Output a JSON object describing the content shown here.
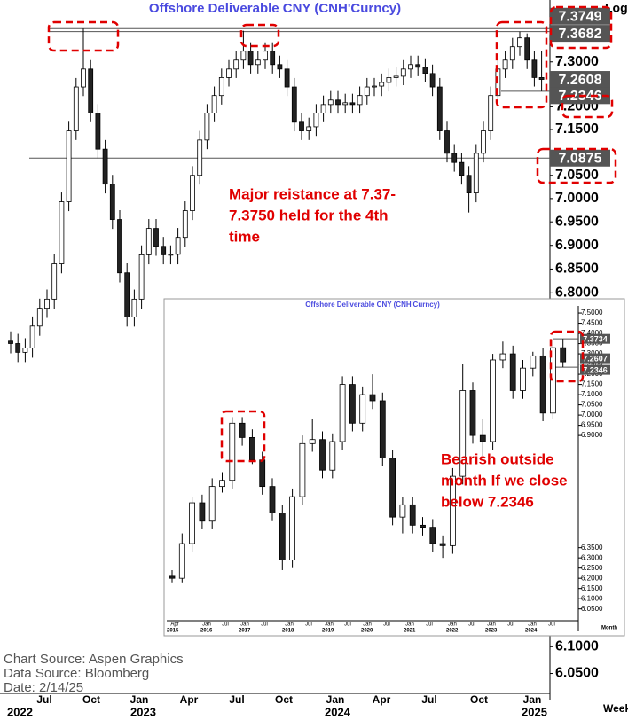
{
  "chart_data": [
    {
      "type": "candlestick",
      "title": "Offshore  Deliverable  CNY  (CNH'Curncy)",
      "log": true,
      "scale_label": "Log",
      "x_axis_label": "Week",
      "ylim": [
        6.0,
        7.44
      ],
      "yticks": [
        {
          "value": 7.3,
          "label": "7.3000"
        },
        {
          "value": 7.2,
          "label": "7.2000"
        },
        {
          "value": 7.15,
          "label": "7.1500"
        },
        {
          "value": 7.05,
          "label": "7.0500"
        },
        {
          "value": 7.0,
          "label": "7.0000"
        },
        {
          "value": 6.95,
          "label": "6.9500"
        },
        {
          "value": 6.9,
          "label": "6.9000"
        },
        {
          "value": 6.85,
          "label": "6.8500"
        },
        {
          "value": 6.8,
          "label": "6.8000"
        },
        {
          "value": 6.1,
          "label": "6.1000"
        },
        {
          "value": 6.05,
          "label": "6.0500"
        }
      ],
      "x_months": [
        null,
        "Jul",
        "Oct",
        "Jan",
        "Apr",
        "Jul",
        "Oct",
        "Jan",
        "Apr",
        "Jul",
        "Oct",
        "Jan"
      ],
      "x_years": [
        "2022",
        null,
        null,
        "2023",
        null,
        null,
        null,
        "2024",
        null,
        null,
        null,
        "2025"
      ],
      "price_labels": [
        7.3749,
        7.3682,
        7.2608,
        7.2346,
        7.0875
      ],
      "annotation": [
        "Major reistance at 7.37-",
        "7.3750 held for the 4th",
        "time"
      ],
      "candles": [
        [
          6.7,
          6.72,
          6.675,
          6.695
        ],
        [
          6.695,
          6.715,
          6.657,
          6.677
        ],
        [
          6.677,
          6.706,
          6.657,
          6.686
        ],
        [
          6.686,
          6.751,
          6.666,
          6.731
        ],
        [
          6.731,
          6.788,
          6.711,
          6.768
        ],
        [
          6.768,
          6.807,
          6.748,
          6.787
        ],
        [
          6.787,
          6.881,
          6.767,
          6.861
        ],
        [
          6.861,
          7.013,
          6.841,
          6.993
        ],
        [
          6.993,
          7.167,
          6.973,
          7.147
        ],
        [
          7.147,
          7.264,
          7.127,
          7.244
        ],
        [
          7.244,
          7.3749,
          7.224,
          7.284
        ],
        [
          7.284,
          7.304,
          7.166,
          7.186
        ],
        [
          7.186,
          7.206,
          7.087,
          7.107
        ],
        [
          7.107,
          7.127,
          7.011,
          7.031
        ],
        [
          7.031,
          7.051,
          6.935,
          6.955
        ],
        [
          6.955,
          6.975,
          6.822,
          6.842
        ],
        [
          6.842,
          6.862,
          6.73,
          6.75
        ],
        [
          6.75,
          6.807,
          6.73,
          6.787
        ],
        [
          6.787,
          6.9,
          6.767,
          6.88
        ],
        [
          6.88,
          6.956,
          6.86,
          6.936
        ],
        [
          6.936,
          6.956,
          6.878,
          6.898
        ],
        [
          6.898,
          6.918,
          6.86,
          6.88
        ],
        [
          6.88,
          6.9,
          6.86,
          6.881
        ],
        [
          6.881,
          6.937,
          6.86,
          6.917
        ],
        [
          6.917,
          6.994,
          6.897,
          6.974
        ],
        [
          6.974,
          7.07,
          6.954,
          7.05
        ],
        [
          7.05,
          7.147,
          7.03,
          7.127
        ],
        [
          7.127,
          7.206,
          7.107,
          7.186
        ],
        [
          7.186,
          7.245,
          7.166,
          7.225
        ],
        [
          7.225,
          7.285,
          7.205,
          7.265
        ],
        [
          7.265,
          7.304,
          7.245,
          7.284
        ],
        [
          7.284,
          7.324,
          7.264,
          7.304
        ],
        [
          7.304,
          7.37,
          7.284,
          7.324
        ],
        [
          7.324,
          7.344,
          7.274,
          7.294
        ],
        [
          7.294,
          7.324,
          7.274,
          7.304
        ],
        [
          7.304,
          7.344,
          7.284,
          7.324
        ],
        [
          7.324,
          7.344,
          7.274,
          7.294
        ],
        [
          7.294,
          7.314,
          7.264,
          7.284
        ],
        [
          7.284,
          7.304,
          7.224,
          7.244
        ],
        [
          7.244,
          7.264,
          7.146,
          7.166
        ],
        [
          7.166,
          7.186,
          7.127,
          7.147
        ],
        [
          7.147,
          7.176,
          7.127,
          7.156
        ],
        [
          7.156,
          7.206,
          7.136,
          7.186
        ],
        [
          7.186,
          7.225,
          7.166,
          7.205
        ],
        [
          7.205,
          7.235,
          7.185,
          7.215
        ],
        [
          7.215,
          7.235,
          7.185,
          7.205
        ],
        [
          7.205,
          7.229,
          7.185,
          7.209
        ],
        [
          7.209,
          7.229,
          7.185,
          7.205
        ],
        [
          7.205,
          7.245,
          7.185,
          7.225
        ],
        [
          7.225,
          7.264,
          7.205,
          7.244
        ],
        [
          7.244,
          7.264,
          7.224,
          7.246
        ],
        [
          7.246,
          7.274,
          7.224,
          7.254
        ],
        [
          7.254,
          7.285,
          7.234,
          7.265
        ],
        [
          7.265,
          7.288,
          7.245,
          7.268
        ],
        [
          7.268,
          7.304,
          7.248,
          7.284
        ],
        [
          7.284,
          7.314,
          7.264,
          7.294
        ],
        [
          7.294,
          7.314,
          7.268,
          7.288
        ],
        [
          7.288,
          7.308,
          7.254,
          7.274
        ],
        [
          7.274,
          7.294,
          7.224,
          7.244
        ],
        [
          7.244,
          7.264,
          7.127,
          7.147
        ],
        [
          7.147,
          7.167,
          7.078,
          7.098
        ],
        [
          7.098,
          7.118,
          7.058,
          7.078
        ],
        [
          7.078,
          7.098,
          7.03,
          7.05
        ],
        [
          7.05,
          7.07,
          6.97,
          7.012
        ],
        [
          7.012,
          7.118,
          6.992,
          7.098
        ],
        [
          7.098,
          7.167,
          7.078,
          7.147
        ],
        [
          7.147,
          7.245,
          7.127,
          7.225
        ],
        [
          7.225,
          7.304,
          7.205,
          7.284
        ],
        [
          7.284,
          7.324,
          7.264,
          7.304
        ],
        [
          7.304,
          7.354,
          7.284,
          7.334
        ],
        [
          7.334,
          7.3682,
          7.314,
          7.354
        ],
        [
          7.354,
          7.364,
          7.284,
          7.304
        ],
        [
          7.304,
          7.324,
          7.245,
          7.265
        ],
        [
          7.265,
          7.324,
          7.2346,
          7.2608
        ]
      ]
    },
    {
      "type": "candlestick",
      "title": "Offshore  Deliverable  CNY  (CNH'Curncy)",
      "log": false,
      "x_axis_label": "Month",
      "ylim": [
        5.94,
        7.535
      ],
      "yticks": [
        {
          "value": 7.5,
          "label": "7.5000"
        },
        {
          "value": 7.45,
          "label": "7.4500"
        },
        {
          "value": 7.4,
          "label": "7.4000"
        },
        {
          "value": 7.35,
          "label": "7.3500"
        },
        {
          "value": 7.3,
          "label": "7.3000"
        },
        {
          "value": 7.25,
          "label": "7.2500"
        },
        {
          "value": 7.2,
          "label": "7.2000"
        },
        {
          "value": 7.15,
          "label": "7.1500"
        },
        {
          "value": 7.1,
          "label": "7.1000"
        },
        {
          "value": 7.05,
          "label": "7.0500"
        },
        {
          "value": 7.0,
          "label": "7.0000"
        },
        {
          "value": 6.95,
          "label": "6.9500"
        },
        {
          "value": 6.9,
          "label": "6.9000"
        },
        {
          "value": 6.35,
          "label": "6.3500"
        },
        {
          "value": 6.3,
          "label": "6.3000"
        },
        {
          "value": 6.25,
          "label": "6.2500"
        },
        {
          "value": 6.2,
          "label": "6.2000"
        },
        {
          "value": 6.15,
          "label": "6.1500"
        },
        {
          "value": 6.1,
          "label": "6.1000"
        },
        {
          "value": 6.05,
          "label": "6.0500"
        }
      ],
      "x_months": [
        "Apr",
        "Jan",
        "Jul",
        "Jan",
        "Jul",
        "Jan",
        "Jul",
        "Jan",
        "Jul",
        "Jan",
        "Jul",
        "Jan",
        "Jul",
        "Jan",
        "Jul",
        "Jan",
        "Jul",
        "Jan",
        "Jul"
      ],
      "x_years": [
        "2015",
        "2016",
        null,
        "2017",
        null,
        "2018",
        null,
        "2019",
        null,
        "2020",
        null,
        "2021",
        null,
        "2022",
        null,
        "2023",
        null,
        "2024",
        null
      ],
      "price_labels": [
        7.3734,
        7.2607,
        7.2346
      ],
      "annotation": [
        "Bearish outside",
        "month If we close",
        "below 7.2346"
      ],
      "candles": [
        [
          6.21,
          6.24,
          6.18,
          6.2
        ],
        [
          6.2,
          6.42,
          6.18,
          6.37
        ],
        [
          6.37,
          6.6,
          6.33,
          6.57
        ],
        [
          6.57,
          6.61,
          6.44,
          6.48
        ],
        [
          6.48,
          6.69,
          6.44,
          6.65
        ],
        [
          6.65,
          6.72,
          6.62,
          6.68
        ],
        [
          6.68,
          6.99,
          6.64,
          6.96
        ],
        [
          6.96,
          6.99,
          6.85,
          6.89
        ],
        [
          6.89,
          6.93,
          6.76,
          6.78
        ],
        [
          6.78,
          6.82,
          6.61,
          6.65
        ],
        [
          6.65,
          6.69,
          6.48,
          6.52
        ],
        [
          6.52,
          6.56,
          6.24,
          6.29
        ],
        [
          6.29,
          6.64,
          6.25,
          6.6
        ],
        [
          6.6,
          6.9,
          6.56,
          6.86
        ],
        [
          6.86,
          6.98,
          6.82,
          6.88
        ],
        [
          6.88,
          6.92,
          6.69,
          6.73
        ],
        [
          6.73,
          6.91,
          6.69,
          6.87
        ],
        [
          6.87,
          7.19,
          6.83,
          7.15
        ],
        [
          7.15,
          7.19,
          6.92,
          6.96
        ],
        [
          6.96,
          7.14,
          6.92,
          7.1
        ],
        [
          7.1,
          7.2,
          7.03,
          7.07
        ],
        [
          7.07,
          7.11,
          6.75,
          6.79
        ],
        [
          6.79,
          6.83,
          6.46,
          6.5
        ],
        [
          6.5,
          6.6,
          6.42,
          6.56
        ],
        [
          6.56,
          6.6,
          6.42,
          6.46
        ],
        [
          6.46,
          6.5,
          6.41,
          6.45
        ],
        [
          6.45,
          6.49,
          6.33,
          6.37
        ],
        [
          6.37,
          6.41,
          6.3,
          6.36
        ],
        [
          6.36,
          6.74,
          6.32,
          6.7
        ],
        [
          6.7,
          7.25,
          6.66,
          7.12
        ],
        [
          7.12,
          7.16,
          6.86,
          6.9
        ],
        [
          6.9,
          6.98,
          6.8,
          6.87
        ],
        [
          6.87,
          7.3,
          6.83,
          7.27
        ],
        [
          7.27,
          7.36,
          7.23,
          7.3
        ],
        [
          7.3,
          7.34,
          7.08,
          7.12
        ],
        [
          7.12,
          7.27,
          7.08,
          7.23
        ],
        [
          7.23,
          7.31,
          7.19,
          7.29
        ],
        [
          7.29,
          7.33,
          6.97,
          7.01
        ],
        [
          7.01,
          7.37,
          6.98,
          7.33
        ],
        [
          7.33,
          7.3734,
          7.2346,
          7.2607
        ]
      ]
    }
  ],
  "sources": [
    "Chart Source:  Aspen Graphics",
    "Data  Source:  Bloomberg",
    "Date:    2/14/25"
  ]
}
